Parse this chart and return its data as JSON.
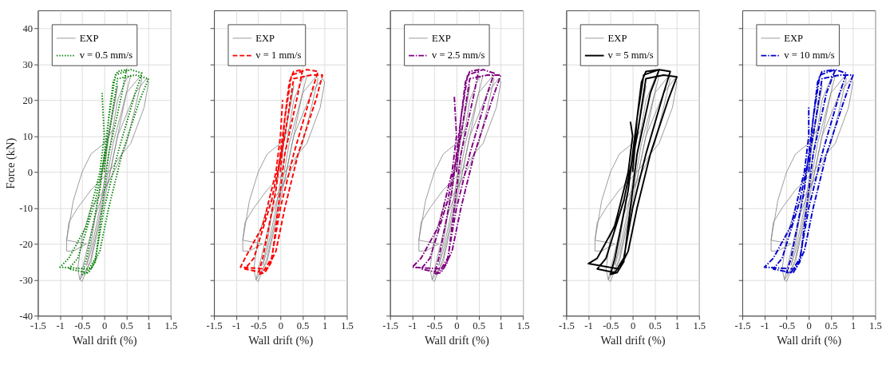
{
  "chart_data": [
    {
      "type": "line",
      "ylabel": "Force (kN)",
      "xlabel": "Wall drift (%)",
      "xlim": [
        -1.5,
        1.5
      ],
      "xticks": [
        -1.5,
        -1,
        -0.5,
        0,
        0.5,
        1,
        1.5
      ],
      "ylim": [
        -40,
        45
      ],
      "yticks": [
        -40,
        -30,
        -20,
        -10,
        0,
        10,
        20,
        30,
        40
      ],
      "grid": true,
      "legend": "top left",
      "series": [
        {
          "name": "EXP",
          "color": "#808080",
          "line_style": "solid",
          "x": [
            0,
            0.1,
            0.25,
            0.3,
            0.2,
            0,
            -0.15,
            -0.3,
            -0.4,
            -0.3,
            -0.1,
            0.1,
            0.3,
            0.5,
            0.6,
            0.5,
            0.3,
            0.1,
            -0.2,
            -0.4,
            -0.55,
            -0.5,
            -0.3,
            0,
            0.2,
            0.5,
            0.8,
            0.85,
            0.7,
            0.5,
            0.3,
            0,
            -0.3,
            -0.5,
            -0.6,
            -0.55,
            -0.3,
            0,
            0.3,
            0.7,
            0.95,
            1.0,
            0.9,
            0.6,
            0.4,
            0.1,
            -0.3,
            -0.6,
            -0.8,
            -0.85,
            -0.85,
            -0.7,
            -0.4,
            -0.85,
            -0.7,
            -0.5,
            -0.3,
            0,
            0.2
          ],
          "values": [
            0,
            10,
            20,
            24,
            18,
            3,
            -8,
            -20,
            -26,
            -22,
            -10,
            5,
            20,
            26,
            27,
            22,
            10,
            -2,
            -12,
            -22,
            -30,
            -30.5,
            -24,
            -6,
            8,
            22,
            26.5,
            26,
            18,
            8,
            2,
            -5,
            -10,
            -18,
            -27,
            -30,
            -25,
            -8,
            10,
            22,
            26,
            25,
            18,
            8,
            5,
            0,
            -5,
            -10,
            -14,
            -19,
            -22,
            -22,
            -20,
            -19,
            -8,
            0,
            5,
            8,
            12
          ]
        },
        {
          "name": "v = 0.5 mm/s",
          "color": "#008000",
          "line_style": "dotted",
          "x": [
            0,
            0.1,
            0.2,
            0.3,
            0.5,
            0.4,
            0.1,
            -0.1,
            -0.2,
            -0.35,
            -0.5,
            -0.4,
            -0.1,
            0.1,
            0.25,
            0.6,
            0.85,
            0.7,
            0.3,
            0,
            -0.2,
            -0.4,
            -0.8,
            -0.6,
            -0.2,
            0.1,
            0.3,
            0.7,
            1.0,
            0.8,
            0.4,
            0.1,
            -0.1,
            -0.3,
            -1.0,
            -0.8,
            -0.4,
            -0.1,
            0,
            -0.05
          ],
          "values": [
            0,
            15,
            25,
            28,
            28.5,
            22,
            5,
            -15,
            -25,
            -28,
            -28.5,
            -24,
            -5,
            15,
            27,
            28.5,
            27.5,
            22,
            5,
            -10,
            -24,
            -28,
            -27,
            -24,
            -8,
            10,
            26,
            27,
            26,
            20,
            5,
            -10,
            -22,
            -27,
            -26.5,
            -24,
            -15,
            0,
            10,
            22
          ]
        }
      ]
    },
    {
      "type": "line",
      "xlabel": "Wall drift (%)",
      "xlim": [
        -1.5,
        1.5
      ],
      "xticks": [
        -1.5,
        -1,
        -0.5,
        0,
        0.5,
        1,
        1.5
      ],
      "ylim": [
        -40,
        45
      ],
      "yticks": [
        -40,
        -30,
        -20,
        -10,
        0,
        10,
        20,
        30,
        40
      ],
      "tick_labels": "x",
      "grid": true,
      "legend": "top left",
      "series": [
        {
          "name": "EXP",
          "color": "#808080",
          "line_style": "solid",
          "x": [
            0,
            0.1,
            0.25,
            0.3,
            0.2,
            0,
            -0.15,
            -0.3,
            -0.4,
            -0.3,
            -0.1,
            0.1,
            0.3,
            0.5,
            0.6,
            0.5,
            0.3,
            0.1,
            -0.2,
            -0.4,
            -0.55,
            -0.5,
            -0.3,
            0,
            0.2,
            0.5,
            0.8,
            0.85,
            0.7,
            0.5,
            0.3,
            0,
            -0.3,
            -0.5,
            -0.6,
            -0.55,
            -0.3,
            0,
            0.3,
            0.7,
            0.95,
            1.0,
            0.9,
            0.6,
            0.4,
            0.1,
            -0.3,
            -0.6,
            -0.8,
            -0.85,
            -0.85,
            -0.7,
            -0.4,
            -0.85,
            -0.7,
            -0.5,
            -0.3,
            0,
            0.2
          ],
          "values": [
            0,
            10,
            20,
            24,
            18,
            3,
            -8,
            -20,
            -26,
            -22,
            -10,
            5,
            20,
            26,
            27,
            22,
            10,
            -2,
            -12,
            -22,
            -30,
            -30.5,
            -24,
            -6,
            8,
            22,
            26.5,
            26,
            18,
            8,
            2,
            -5,
            -10,
            -18,
            -27,
            -30,
            -25,
            -8,
            10,
            22,
            26,
            25,
            18,
            8,
            5,
            0,
            -5,
            -10,
            -14,
            -19,
            -22,
            -22,
            -20,
            -19,
            -8,
            0,
            5,
            8,
            12
          ]
        },
        {
          "name": "v = 1 mm/s",
          "color": "#ff0000",
          "line_style": "dashed",
          "x": [
            0,
            0.1,
            0.2,
            0.3,
            0.5,
            0.4,
            0.1,
            -0.1,
            -0.2,
            -0.35,
            -0.5,
            -0.4,
            -0.1,
            0.1,
            0.25,
            0.6,
            0.85,
            0.7,
            0.3,
            0,
            -0.2,
            -0.4,
            -0.8,
            -0.6,
            -0.2,
            0.1,
            0.3,
            0.7,
            0.95,
            0.8,
            0.4,
            0.1,
            -0.1,
            -0.3,
            -0.9,
            -0.8,
            -0.4,
            -0.1,
            0,
            0.05
          ],
          "values": [
            0,
            15,
            25,
            28,
            28.5,
            22,
            5,
            -15,
            -25,
            -28,
            -28.5,
            -24,
            -5,
            15,
            27,
            28.5,
            28,
            22,
            5,
            -10,
            -24,
            -28,
            -27,
            -24,
            -8,
            10,
            26,
            27,
            27,
            20,
            5,
            -10,
            -22,
            -27,
            -26.5,
            -24,
            -15,
            0,
            10,
            20
          ]
        }
      ]
    },
    {
      "type": "line",
      "xlabel": "Wall drift (%)",
      "xlim": [
        -1.5,
        1.5
      ],
      "xticks": [
        -1.5,
        -1,
        -0.5,
        0,
        0.5,
        1,
        1.5
      ],
      "ylim": [
        -40,
        45
      ],
      "yticks": [
        -40,
        -30,
        -20,
        -10,
        0,
        10,
        20,
        30,
        40
      ],
      "tick_labels": "x",
      "grid": true,
      "legend": "top left",
      "series": [
        {
          "name": "EXP",
          "color": "#808080",
          "line_style": "solid",
          "x": [
            0,
            0.1,
            0.25,
            0.3,
            0.2,
            0,
            -0.15,
            -0.3,
            -0.4,
            -0.3,
            -0.1,
            0.1,
            0.3,
            0.5,
            0.6,
            0.5,
            0.3,
            0.1,
            -0.2,
            -0.4,
            -0.55,
            -0.5,
            -0.3,
            0,
            0.2,
            0.5,
            0.8,
            0.85,
            0.7,
            0.5,
            0.3,
            0,
            -0.3,
            -0.5,
            -0.6,
            -0.55,
            -0.3,
            0,
            0.3,
            0.7,
            0.95,
            1.0,
            0.9,
            0.6,
            0.4,
            0.1,
            -0.3,
            -0.6,
            -0.8,
            -0.85,
            -0.85,
            -0.7,
            -0.4,
            -0.85,
            -0.7,
            -0.5,
            -0.3,
            0,
            0.2
          ],
          "values": [
            0,
            10,
            20,
            24,
            18,
            3,
            -8,
            -20,
            -26,
            -22,
            -10,
            5,
            20,
            26,
            27,
            22,
            10,
            -2,
            -12,
            -22,
            -30,
            -30.5,
            -24,
            -6,
            8,
            22,
            26.5,
            26,
            18,
            8,
            2,
            -5,
            -10,
            -18,
            -27,
            -30,
            -25,
            -8,
            10,
            22,
            26,
            25,
            18,
            8,
            5,
            0,
            -5,
            -10,
            -14,
            -19,
            -22,
            -22,
            -20,
            -19,
            -8,
            0,
            5,
            8,
            12
          ]
        },
        {
          "name": "v = 2.5 mm/s",
          "color": "#800080",
          "line_style": "dashdot",
          "x": [
            0,
            0.1,
            0.2,
            0.3,
            0.5,
            0.4,
            0.1,
            -0.1,
            -0.2,
            -0.35,
            -0.5,
            -0.4,
            -0.1,
            0.1,
            0.25,
            0.6,
            0.85,
            0.7,
            0.3,
            0,
            -0.2,
            -0.4,
            -0.8,
            -0.6,
            -0.2,
            0.1,
            0.3,
            0.7,
            1.0,
            0.8,
            0.4,
            0.1,
            -0.1,
            -0.3,
            -1.0,
            -0.8,
            -0.4,
            -0.1,
            0,
            -0.05
          ],
          "values": [
            0,
            15,
            25,
            28,
            28.5,
            22,
            5,
            -15,
            -25,
            -28,
            -28.5,
            -24,
            -5,
            15,
            27,
            28.5,
            27.5,
            22,
            5,
            -10,
            -24,
            -28,
            -27,
            -24,
            -8,
            10,
            26,
            27,
            27,
            20,
            5,
            -10,
            -22,
            -27,
            -26.5,
            -24,
            -15,
            0,
            10,
            21
          ]
        }
      ]
    },
    {
      "type": "line",
      "xlabel": "Wall drift (%)",
      "xlim": [
        -1.5,
        1.5
      ],
      "xticks": [
        -1.5,
        -1,
        -0.5,
        0,
        0.5,
        1,
        1.5
      ],
      "ylim": [
        -40,
        45
      ],
      "yticks": [
        -40,
        -30,
        -20,
        -10,
        0,
        10,
        20,
        30,
        40
      ],
      "tick_labels": "x",
      "grid": true,
      "legend": "top left",
      "series": [
        {
          "name": "EXP",
          "color": "#808080",
          "line_style": "solid",
          "x": [
            0,
            0.1,
            0.25,
            0.3,
            0.2,
            0,
            -0.15,
            -0.3,
            -0.4,
            -0.3,
            -0.1,
            0.1,
            0.3,
            0.5,
            0.6,
            0.5,
            0.3,
            0.1,
            -0.2,
            -0.4,
            -0.55,
            -0.5,
            -0.3,
            0,
            0.2,
            0.5,
            0.8,
            0.85,
            0.7,
            0.5,
            0.3,
            0,
            -0.3,
            -0.5,
            -0.6,
            -0.55,
            -0.3,
            0,
            0.3,
            0.7,
            0.95,
            1.0,
            0.9,
            0.6,
            0.4,
            0.1,
            -0.3,
            -0.6,
            -0.8,
            -0.85,
            -0.85,
            -0.7,
            -0.4,
            -0.85,
            -0.7,
            -0.5,
            -0.3,
            0,
            0.2
          ],
          "values": [
            0,
            10,
            20,
            24,
            18,
            3,
            -8,
            -20,
            -26,
            -22,
            -10,
            5,
            20,
            26,
            27,
            22,
            10,
            -2,
            -12,
            -22,
            -30,
            -30.5,
            -24,
            -6,
            8,
            22,
            26.5,
            26,
            18,
            8,
            2,
            -5,
            -10,
            -18,
            -27,
            -30,
            -25,
            -8,
            10,
            22,
            26,
            25,
            18,
            8,
            5,
            0,
            -5,
            -10,
            -14,
            -19,
            -22,
            -22,
            -20,
            -19,
            -8,
            0,
            5,
            8,
            12
          ]
        },
        {
          "name": "v = 5 mm/s",
          "color": "#000000",
          "line_style": "solid",
          "x": [
            0,
            0.1,
            0.2,
            0.3,
            0.6,
            0.4,
            0.1,
            -0.1,
            -0.2,
            -0.35,
            -0.5,
            -0.4,
            -0.1,
            0.1,
            0.25,
            0.6,
            0.85,
            0.7,
            0.3,
            0,
            -0.2,
            -0.4,
            -0.8,
            -0.6,
            -0.2,
            0.1,
            0.3,
            0.7,
            1.0,
            0.8,
            0.4,
            0.1,
            -0.1,
            -0.3,
            -1.0,
            -0.8,
            -0.4,
            -0.1,
            0,
            -0.05
          ],
          "values": [
            0,
            15,
            25,
            28,
            28.5,
            22,
            5,
            -15,
            -25,
            -28,
            -28.5,
            -24,
            -5,
            15,
            27,
            28.5,
            28,
            22,
            5,
            -10,
            -24,
            -28,
            -27,
            -24,
            -8,
            10,
            26,
            27,
            26.5,
            20,
            5,
            -10,
            -22,
            -27,
            -25.5,
            -24,
            -15,
            0,
            10,
            14
          ]
        }
      ]
    },
    {
      "type": "line",
      "xlabel": "Wall drift (%)",
      "xlim": [
        -1.5,
        1.5
      ],
      "xticks": [
        -1.5,
        -1,
        -0.5,
        0,
        0.5,
        1,
        1.5
      ],
      "ylim": [
        -40,
        45
      ],
      "yticks": [
        -40,
        -30,
        -20,
        -10,
        0,
        10,
        20,
        30,
        40
      ],
      "tick_labels": "x",
      "grid": true,
      "legend": "top left",
      "series": [
        {
          "name": "EXP",
          "color": "#808080",
          "line_style": "solid",
          "x": [
            0,
            0.1,
            0.25,
            0.3,
            0.2,
            0,
            -0.15,
            -0.3,
            -0.4,
            -0.3,
            -0.1,
            0.1,
            0.3,
            0.5,
            0.6,
            0.5,
            0.3,
            0.1,
            -0.2,
            -0.4,
            -0.55,
            -0.5,
            -0.3,
            0,
            0.2,
            0.5,
            0.8,
            0.85,
            0.7,
            0.5,
            0.3,
            0,
            -0.3,
            -0.5,
            -0.6,
            -0.55,
            -0.3,
            0,
            0.3,
            0.7,
            0.95,
            1.0,
            0.9,
            0.6,
            0.4,
            0.1,
            -0.3,
            -0.6,
            -0.8,
            -0.85,
            -0.85,
            -0.7,
            -0.4,
            -0.85,
            -0.7,
            -0.5,
            -0.3,
            0,
            0.2
          ],
          "values": [
            0,
            10,
            20,
            24,
            18,
            3,
            -8,
            -20,
            -26,
            -22,
            -10,
            5,
            20,
            26,
            27,
            22,
            10,
            -2,
            -12,
            -22,
            -30,
            -30.5,
            -24,
            -6,
            8,
            22,
            26.5,
            26,
            18,
            8,
            2,
            -5,
            -10,
            -18,
            -27,
            -30,
            -25,
            -8,
            10,
            22,
            26,
            25,
            18,
            8,
            5,
            0,
            -5,
            -10,
            -14,
            -19,
            -22,
            -22,
            -20,
            -19,
            -8,
            0,
            5,
            8,
            12
          ]
        },
        {
          "name": "v = 10 mm/s",
          "color": "#0000cc",
          "line_style": "dashdot",
          "x": [
            0,
            0.1,
            0.2,
            0.3,
            0.6,
            0.4,
            0.1,
            -0.1,
            -0.2,
            -0.35,
            -0.5,
            -0.4,
            -0.1,
            0.1,
            0.25,
            0.6,
            0.85,
            0.7,
            0.3,
            0,
            -0.2,
            -0.4,
            -0.8,
            -0.6,
            -0.2,
            0.1,
            0.3,
            0.7,
            1.0,
            0.8,
            0.4,
            0.1,
            -0.1,
            -0.3,
            -1.0,
            -0.8,
            -0.4,
            -0.1,
            0,
            0.0
          ],
          "values": [
            0,
            15,
            25,
            28,
            28.5,
            22,
            5,
            -15,
            -25,
            -28,
            -28,
            -24,
            -5,
            15,
            27,
            28.5,
            27.5,
            22,
            5,
            -10,
            -24,
            -28,
            -27,
            -24,
            -8,
            10,
            26,
            27,
            27,
            20,
            5,
            -10,
            -22,
            -27,
            -26.5,
            -24,
            -15,
            0,
            10,
            18
          ]
        }
      ]
    }
  ]
}
